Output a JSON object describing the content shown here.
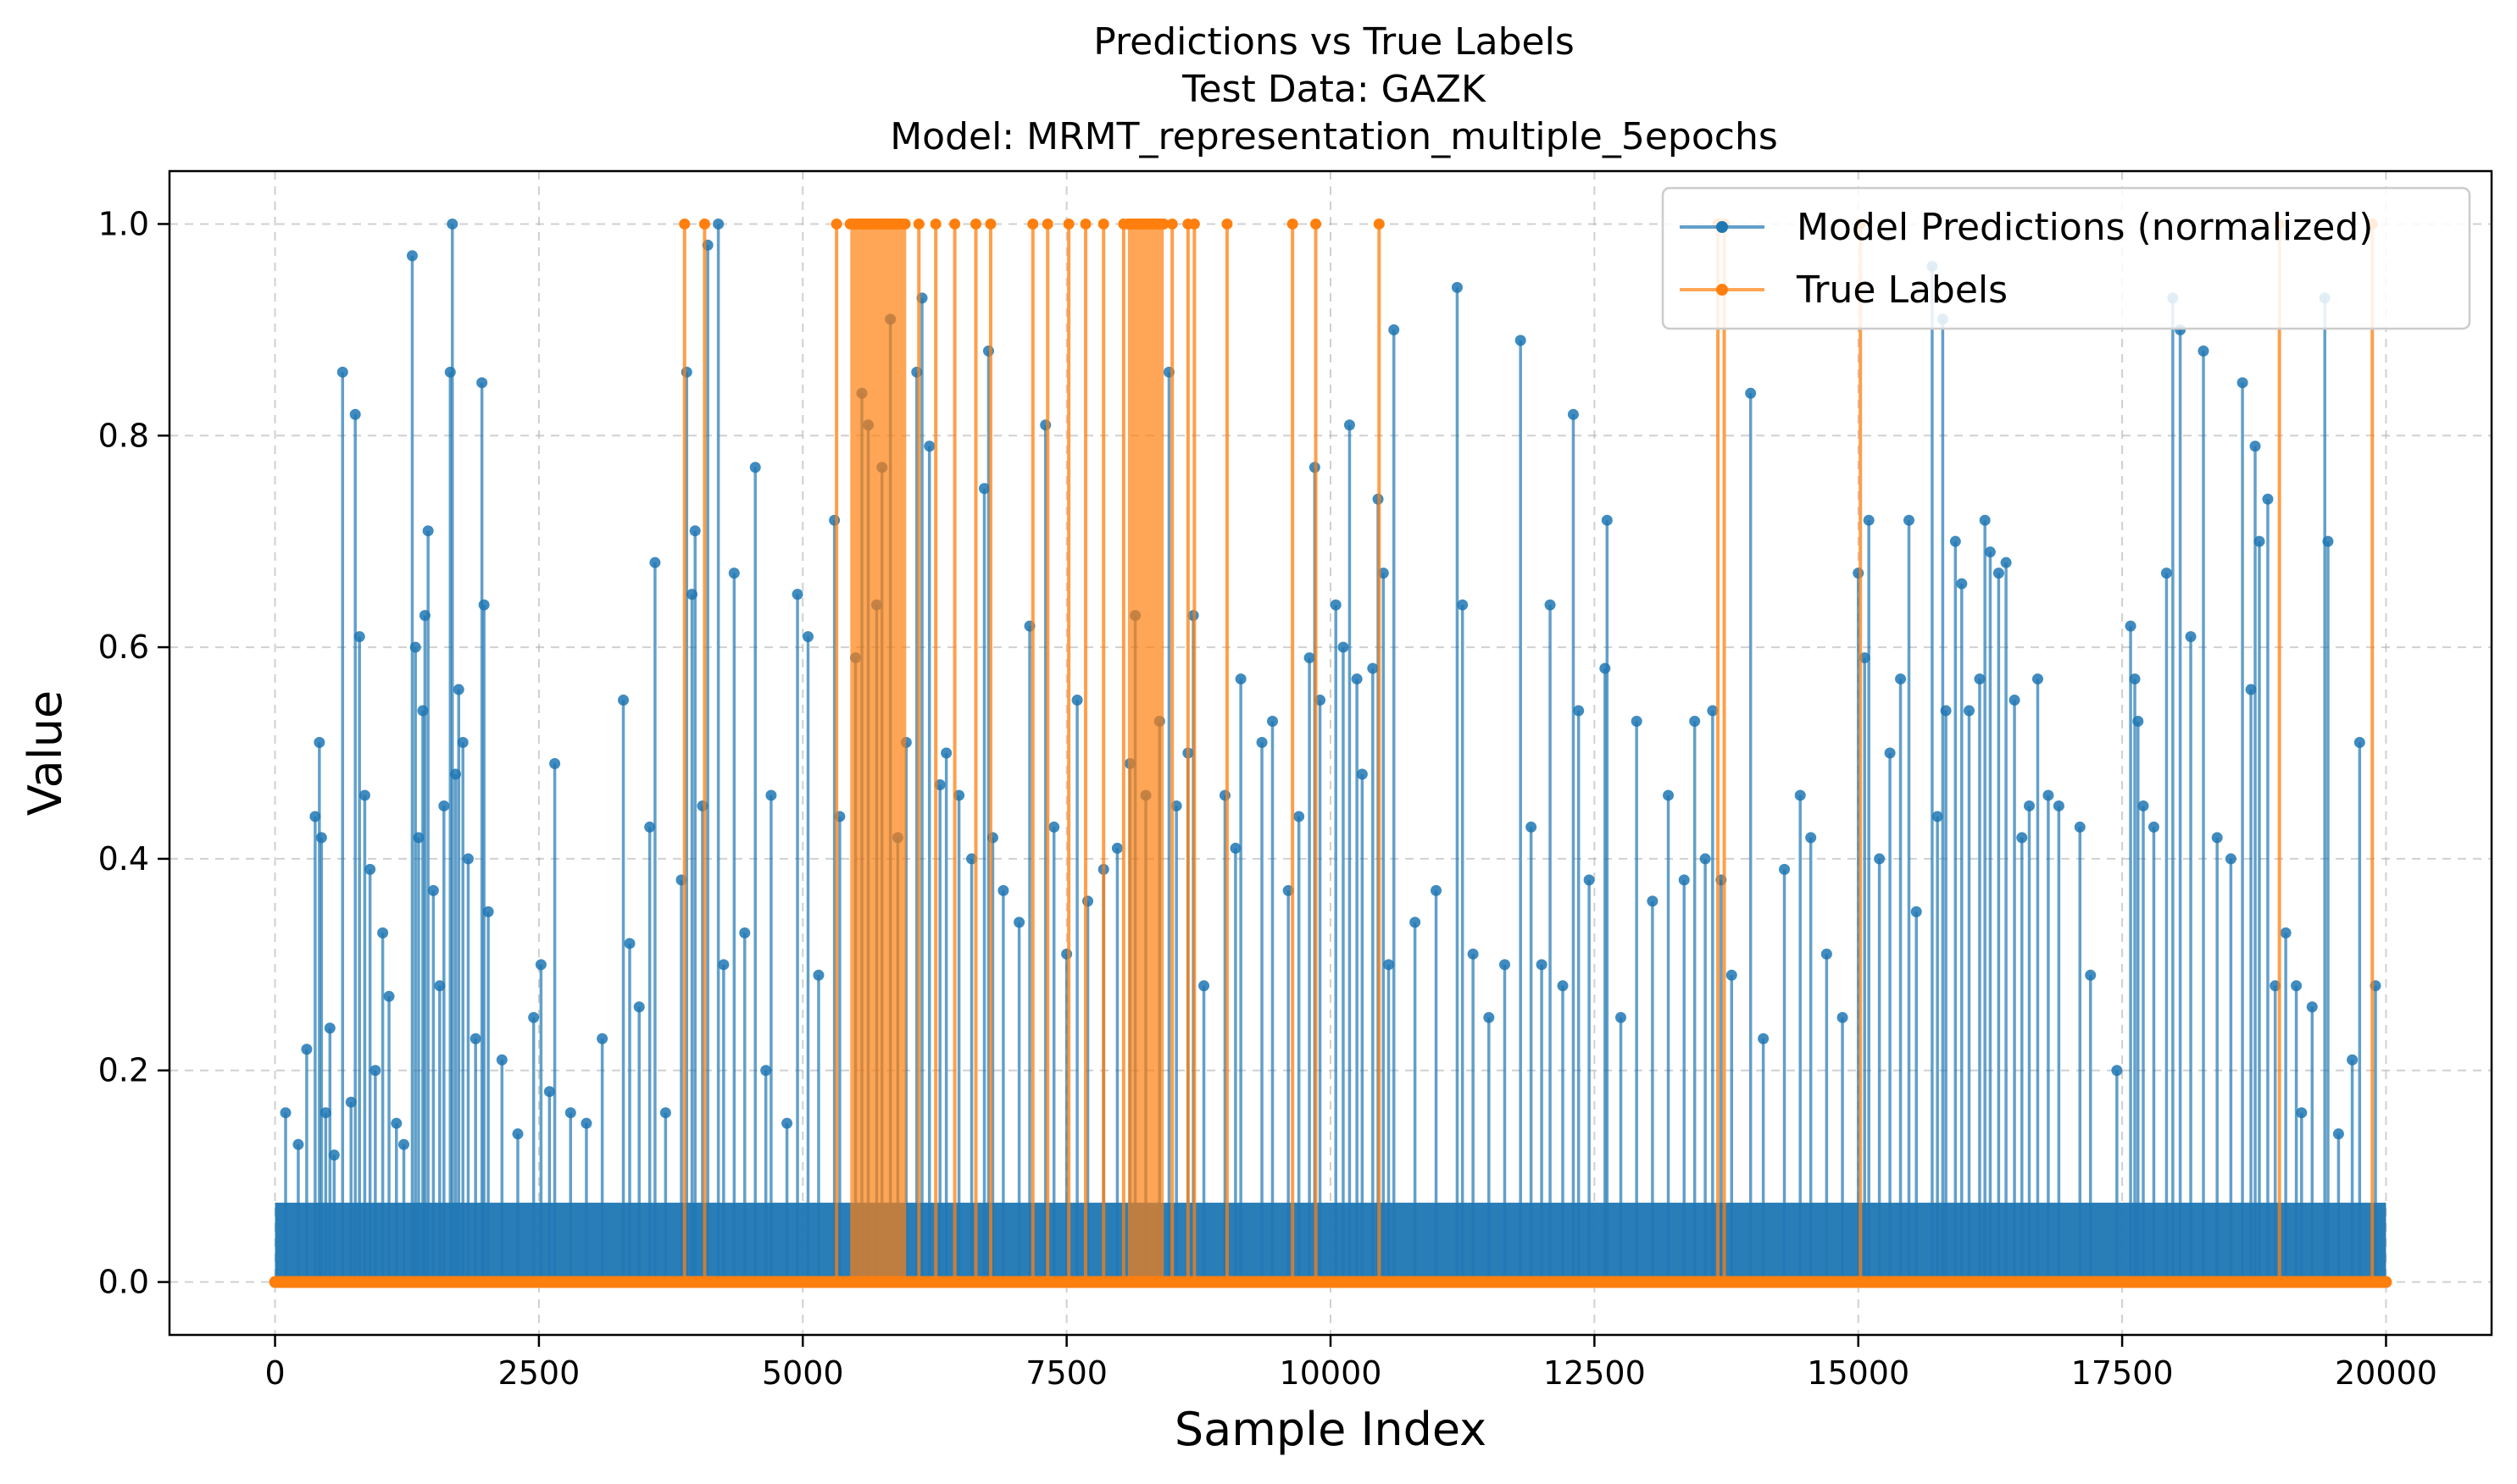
{
  "chart_data": {
    "type": "line",
    "title_lines": [
      "Predictions vs True Labels",
      "Test Data: GAZK",
      "Model: MRMT_representation_multiple_5epochs"
    ],
    "xlabel": "Sample Index",
    "ylabel": "Value",
    "xlim": [
      -1000,
      21000
    ],
    "ylim": [
      -0.05,
      1.05
    ],
    "x_ticks": [
      0,
      2500,
      5000,
      7500,
      10000,
      12500,
      15000,
      17500,
      20000
    ],
    "x_tick_labels": [
      "0",
      "2500",
      "5000",
      "7500",
      "10000",
      "12500",
      "15000",
      "17500",
      "20000"
    ],
    "y_ticks": [
      0.0,
      0.2,
      0.4,
      0.6,
      0.8,
      1.0
    ],
    "y_tick_labels": [
      "0.0",
      "0.2",
      "0.4",
      "0.6",
      "0.8",
      "1.0"
    ],
    "grid": true,
    "legend_position": "top-right",
    "series": [
      {
        "name": "Model Predictions (normalized)",
        "color": "#1f77b4",
        "marker": "circle",
        "points": [
          [
            100,
            0.16
          ],
          [
            220,
            0.13
          ],
          [
            300,
            0.22
          ],
          [
            380,
            0.44
          ],
          [
            420,
            0.51
          ],
          [
            440,
            0.42
          ],
          [
            480,
            0.16
          ],
          [
            520,
            0.24
          ],
          [
            560,
            0.12
          ],
          [
            640,
            0.86
          ],
          [
            720,
            0.17
          ],
          [
            760,
            0.82
          ],
          [
            800,
            0.61
          ],
          [
            850,
            0.46
          ],
          [
            900,
            0.39
          ],
          [
            950,
            0.2
          ],
          [
            1020,
            0.33
          ],
          [
            1080,
            0.27
          ],
          [
            1150,
            0.15
          ],
          [
            1220,
            0.13
          ],
          [
            1300,
            0.97
          ],
          [
            1330,
            0.6
          ],
          [
            1360,
            0.42
          ],
          [
            1400,
            0.54
          ],
          [
            1420,
            0.63
          ],
          [
            1450,
            0.71
          ],
          [
            1500,
            0.37
          ],
          [
            1560,
            0.28
          ],
          [
            1600,
            0.45
          ],
          [
            1660,
            0.86
          ],
          [
            1680,
            1.0
          ],
          [
            1710,
            0.48
          ],
          [
            1740,
            0.56
          ],
          [
            1780,
            0.51
          ],
          [
            1830,
            0.4
          ],
          [
            1900,
            0.23
          ],
          [
            1960,
            0.85
          ],
          [
            1980,
            0.64
          ],
          [
            2020,
            0.35
          ],
          [
            2150,
            0.21
          ],
          [
            2300,
            0.14
          ],
          [
            2450,
            0.25
          ],
          [
            2520,
            0.3
          ],
          [
            2600,
            0.18
          ],
          [
            2650,
            0.49
          ],
          [
            2800,
            0.16
          ],
          [
            2950,
            0.15
          ],
          [
            3100,
            0.23
          ],
          [
            3300,
            0.55
          ],
          [
            3360,
            0.32
          ],
          [
            3450,
            0.26
          ],
          [
            3550,
            0.43
          ],
          [
            3600,
            0.68
          ],
          [
            3700,
            0.16
          ],
          [
            3850,
            0.38
          ],
          [
            3900,
            0.86
          ],
          [
            3950,
            0.65
          ],
          [
            3980,
            0.71
          ],
          [
            4050,
            0.45
          ],
          [
            4100,
            0.98
          ],
          [
            4200,
            1.0
          ],
          [
            4250,
            0.3
          ],
          [
            4350,
            0.67
          ],
          [
            4450,
            0.33
          ],
          [
            4550,
            0.77
          ],
          [
            4650,
            0.2
          ],
          [
            4700,
            0.46
          ],
          [
            4850,
            0.15
          ],
          [
            4950,
            0.65
          ],
          [
            5050,
            0.61
          ],
          [
            5150,
            0.29
          ],
          [
            5300,
            0.72
          ],
          [
            5350,
            0.44
          ],
          [
            5500,
            0.59
          ],
          [
            5560,
            0.84
          ],
          [
            5620,
            0.81
          ],
          [
            5700,
            0.64
          ],
          [
            5750,
            0.77
          ],
          [
            5830,
            0.91
          ],
          [
            5900,
            0.42
          ],
          [
            5980,
            0.51
          ],
          [
            6080,
            0.86
          ],
          [
            6130,
            0.93
          ],
          [
            6200,
            0.79
          ],
          [
            6300,
            0.47
          ],
          [
            6360,
            0.5
          ],
          [
            6480,
            0.46
          ],
          [
            6600,
            0.4
          ],
          [
            6720,
            0.75
          ],
          [
            6760,
            0.88
          ],
          [
            6800,
            0.42
          ],
          [
            6900,
            0.37
          ],
          [
            7050,
            0.34
          ],
          [
            7150,
            0.62
          ],
          [
            7300,
            0.81
          ],
          [
            7380,
            0.43
          ],
          [
            7500,
            0.31
          ],
          [
            7600,
            0.55
          ],
          [
            7700,
            0.36
          ],
          [
            7850,
            0.39
          ],
          [
            7980,
            0.41
          ],
          [
            8100,
            0.49
          ],
          [
            8150,
            0.63
          ],
          [
            8250,
            0.46
          ],
          [
            8380,
            0.53
          ],
          [
            8470,
            0.86
          ],
          [
            8540,
            0.45
          ],
          [
            8650,
            0.5
          ],
          [
            8700,
            0.63
          ],
          [
            8800,
            0.28
          ],
          [
            9000,
            0.46
          ],
          [
            9100,
            0.41
          ],
          [
            9150,
            0.57
          ],
          [
            9350,
            0.51
          ],
          [
            9450,
            0.53
          ],
          [
            9600,
            0.37
          ],
          [
            9700,
            0.44
          ],
          [
            9800,
            0.59
          ],
          [
            9850,
            0.77
          ],
          [
            9900,
            0.55
          ],
          [
            10050,
            0.64
          ],
          [
            10120,
            0.6
          ],
          [
            10180,
            0.81
          ],
          [
            10250,
            0.57
          ],
          [
            10300,
            0.48
          ],
          [
            10400,
            0.58
          ],
          [
            10450,
            0.74
          ],
          [
            10500,
            0.67
          ],
          [
            10550,
            0.3
          ],
          [
            10600,
            0.9
          ],
          [
            10800,
            0.34
          ],
          [
            11000,
            0.37
          ],
          [
            11200,
            0.94
          ],
          [
            11250,
            0.64
          ],
          [
            11350,
            0.31
          ],
          [
            11500,
            0.25
          ],
          [
            11650,
            0.3
          ],
          [
            11800,
            0.89
          ],
          [
            11900,
            0.43
          ],
          [
            12000,
            0.3
          ],
          [
            12080,
            0.64
          ],
          [
            12200,
            0.28
          ],
          [
            12300,
            0.82
          ],
          [
            12350,
            0.54
          ],
          [
            12450,
            0.38
          ],
          [
            12600,
            0.58
          ],
          [
            12620,
            0.72
          ],
          [
            12750,
            0.25
          ],
          [
            12900,
            0.53
          ],
          [
            13050,
            0.36
          ],
          [
            13200,
            0.46
          ],
          [
            13350,
            0.38
          ],
          [
            13450,
            0.53
          ],
          [
            13550,
            0.4
          ],
          [
            13620,
            0.54
          ],
          [
            13700,
            0.38
          ],
          [
            13800,
            0.29
          ],
          [
            13980,
            0.84
          ],
          [
            14100,
            0.23
          ],
          [
            14300,
            0.39
          ],
          [
            14450,
            0.46
          ],
          [
            14550,
            0.42
          ],
          [
            14700,
            0.31
          ],
          [
            14850,
            0.25
          ],
          [
            15000,
            0.67
          ],
          [
            15060,
            0.59
          ],
          [
            15100,
            0.72
          ],
          [
            15200,
            0.4
          ],
          [
            15300,
            0.5
          ],
          [
            15400,
            0.57
          ],
          [
            15480,
            0.72
          ],
          [
            15550,
            0.35
          ],
          [
            15700,
            0.96
          ],
          [
            15750,
            0.44
          ],
          [
            15800,
            0.91
          ],
          [
            15830,
            0.54
          ],
          [
            15920,
            0.7
          ],
          [
            15980,
            0.66
          ],
          [
            16050,
            0.54
          ],
          [
            16150,
            0.57
          ],
          [
            16200,
            0.72
          ],
          [
            16250,
            0.69
          ],
          [
            16330,
            0.67
          ],
          [
            16400,
            0.68
          ],
          [
            16480,
            0.55
          ],
          [
            16550,
            0.42
          ],
          [
            16620,
            0.45
          ],
          [
            16700,
            0.57
          ],
          [
            16800,
            0.46
          ],
          [
            16900,
            0.45
          ],
          [
            17100,
            0.43
          ],
          [
            17200,
            0.29
          ],
          [
            17450,
            0.2
          ],
          [
            17580,
            0.62
          ],
          [
            17620,
            0.57
          ],
          [
            17650,
            0.53
          ],
          [
            17700,
            0.45
          ],
          [
            17800,
            0.43
          ],
          [
            17920,
            0.67
          ],
          [
            17980,
            0.93
          ],
          [
            18050,
            0.9
          ],
          [
            18150,
            0.61
          ],
          [
            18270,
            0.88
          ],
          [
            18400,
            0.42
          ],
          [
            18530,
            0.4
          ],
          [
            18640,
            0.85
          ],
          [
            18720,
            0.56
          ],
          [
            18760,
            0.79
          ],
          [
            18800,
            0.7
          ],
          [
            18880,
            0.74
          ],
          [
            18950,
            0.28
          ],
          [
            19050,
            0.33
          ],
          [
            19150,
            0.28
          ],
          [
            19200,
            0.16
          ],
          [
            19300,
            0.26
          ],
          [
            19420,
            0.93
          ],
          [
            19450,
            0.7
          ],
          [
            19550,
            0.14
          ],
          [
            19680,
            0.21
          ],
          [
            19750,
            0.51
          ],
          [
            19900,
            0.28
          ]
        ]
      },
      {
        "name": "True Labels",
        "color": "#ff7f0e",
        "marker": "circle",
        "ones_at": [
          3880,
          4070,
          5320,
          6100,
          6260,
          6440,
          6640,
          6780,
          7180,
          7320,
          7520,
          7680,
          7850,
          8040,
          8500,
          8650,
          8710,
          9020,
          9640,
          9860,
          10460,
          13670,
          13730,
          15020,
          18990,
          19870
        ],
        "ones_ranges": [
          [
            5450,
            5980
          ],
          [
            8080,
            8420
          ]
        ],
        "zero_baseline": [
          0,
          20000
        ]
      }
    ]
  }
}
